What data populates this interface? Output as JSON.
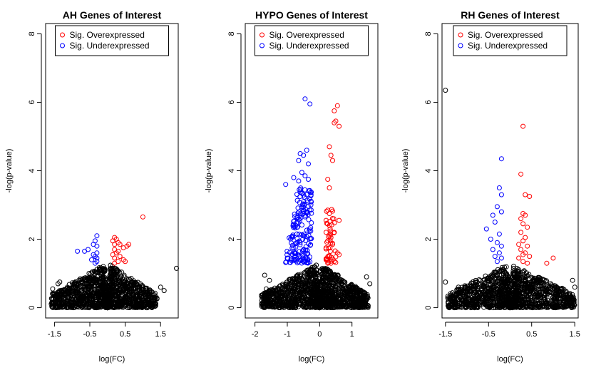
{
  "chart_data": [
    {
      "type": "scatter",
      "title": "AH Genes of Interest",
      "xlabel": "log(FC)",
      "ylabel": "-log(p-value)",
      "xticks": [
        -1.5,
        -0.5,
        0.5,
        1.5
      ],
      "yticks": [
        0,
        2,
        4,
        6,
        8
      ],
      "xlim": [
        -1.75,
        2.0
      ],
      "ylim": [
        -0.3,
        8.3
      ],
      "legend": {
        "position": "top",
        "entries": [
          {
            "label": "Sig. Overexpressed",
            "color": "#ff0000"
          },
          {
            "label": "Sig. Underexpressed",
            "color": "#0000ff"
          }
        ]
      },
      "colors": {
        "ns": "#000000",
        "over": "#ff0000",
        "under": "#0000ff"
      },
      "cloud": {
        "left_edge": -1.6,
        "right_edge": 1.4,
        "peak": 1.3,
        "n": 1400
      },
      "series": [
        {
          "name": "Sig. Overexpressed",
          "color": "#ff0000",
          "points": [
            [
              0.2,
              2.05
            ],
            [
              0.25,
              2.0
            ],
            [
              0.15,
              1.95
            ],
            [
              0.3,
              1.9
            ],
            [
              0.2,
              1.85
            ],
            [
              0.35,
              1.85
            ],
            [
              0.6,
              1.85
            ],
            [
              0.55,
              1.8
            ],
            [
              0.45,
              1.75
            ],
            [
              0.2,
              1.7
            ],
            [
              0.3,
              1.65
            ],
            [
              0.25,
              1.6
            ],
            [
              0.15,
              1.55
            ],
            [
              0.35,
              1.5
            ],
            [
              0.2,
              1.45
            ],
            [
              0.45,
              1.4
            ],
            [
              0.3,
              1.35
            ],
            [
              0.5,
              1.35
            ],
            [
              0.2,
              1.3
            ],
            [
              1.0,
              2.65
            ]
          ]
        },
        {
          "name": "Sig. Underexpressed",
          "color": "#0000ff",
          "points": [
            [
              -0.3,
              2.1
            ],
            [
              -0.35,
              1.95
            ],
            [
              -0.4,
              1.85
            ],
            [
              -0.3,
              1.8
            ],
            [
              -0.55,
              1.7
            ],
            [
              -0.65,
              1.65
            ],
            [
              -0.85,
              1.65
            ],
            [
              -0.3,
              1.6
            ],
            [
              -0.4,
              1.55
            ],
            [
              -0.35,
              1.5
            ],
            [
              -0.3,
              1.45
            ],
            [
              -0.45,
              1.4
            ],
            [
              -0.3,
              1.35
            ],
            [
              -0.35,
              1.3
            ]
          ]
        },
        {
          "name": "",
          "color": "#000000",
          "points": [
            [
              1.95,
              1.15
            ],
            [
              -1.55,
              0.55
            ],
            [
              1.6,
              0.5
            ],
            [
              1.5,
              0.6
            ],
            [
              -1.35,
              0.75
            ],
            [
              -1.4,
              0.7
            ]
          ]
        }
      ]
    },
    {
      "type": "scatter",
      "title": "HYPO Genes of Interest",
      "xlabel": "log(FC)",
      "ylabel": "-log(p-value)",
      "xticks": [
        -2,
        -1,
        0,
        1
      ],
      "yticks": [
        0,
        2,
        4,
        6,
        8
      ],
      "xlim": [
        -2.3,
        1.8
      ],
      "ylim": [
        -0.3,
        8.3
      ],
      "legend": {
        "position": "top",
        "entries": [
          {
            "label": "Sig. Overexpressed",
            "color": "#ff0000"
          },
          {
            "label": "Sig. Underexpressed",
            "color": "#0000ff"
          }
        ]
      },
      "colors": {
        "ns": "#000000",
        "over": "#ff0000",
        "under": "#0000ff"
      },
      "cloud": {
        "left_edge": -1.8,
        "right_edge": 1.5,
        "peak": 1.3,
        "n": 1500
      },
      "series": [
        {
          "name": "Sig. Overexpressed",
          "color": "#ff0000",
          "points": [
            [
              0.55,
              5.9
            ],
            [
              0.45,
              5.75
            ],
            [
              0.5,
              5.45
            ],
            [
              0.45,
              5.4
            ],
            [
              0.6,
              5.3
            ],
            [
              0.3,
              4.7
            ],
            [
              0.35,
              4.45
            ],
            [
              0.4,
              4.3
            ],
            [
              0.25,
              3.75
            ],
            [
              0.3,
              3.5
            ],
            [
              0.25,
              2.85
            ],
            [
              0.3,
              2.75
            ],
            [
              0.2,
              2.55
            ],
            [
              0.6,
              2.55
            ],
            [
              0.3,
              2.4
            ],
            [
              0.2,
              2.2
            ],
            [
              0.45,
              2.2
            ],
            [
              0.35,
              2.05
            ],
            [
              0.25,
              1.95
            ],
            [
              0.4,
              1.85
            ],
            [
              0.2,
              1.75
            ],
            [
              0.55,
              1.6
            ],
            [
              0.6,
              1.55
            ],
            [
              0.3,
              1.5
            ],
            [
              0.2,
              1.4
            ],
            [
              0.45,
              1.35
            ],
            [
              0.25,
              1.3
            ],
            [
              0.35,
              1.3
            ]
          ]
        },
        {
          "name": "Sig. Underexpressed",
          "color": "#0000ff",
          "points": [
            [
              -0.45,
              6.1
            ],
            [
              -0.3,
              5.95
            ],
            [
              -0.6,
              4.5
            ],
            [
              -0.5,
              4.45
            ],
            [
              -0.4,
              4.6
            ],
            [
              -0.65,
              4.3
            ],
            [
              -0.35,
              4.2
            ],
            [
              -0.55,
              3.95
            ],
            [
              -0.45,
              3.85
            ],
            [
              -0.8,
              3.8
            ],
            [
              -0.65,
              3.7
            ],
            [
              -0.35,
              3.75
            ],
            [
              -1.05,
              3.6
            ],
            [
              -0.55,
              3.35
            ],
            [
              -0.4,
              3.3
            ]
          ]
        },
        {
          "name": "",
          "color": "#000000",
          "points": [
            [
              -1.7,
              0.95
            ],
            [
              1.45,
              0.9
            ],
            [
              -1.55,
              0.8
            ],
            [
              1.55,
              0.7
            ],
            [
              -1.65,
              0.55
            ]
          ]
        }
      ],
      "under_band": {
        "x": [
          -1.1,
          -0.25
        ],
        "y": [
          1.3,
          3.5
        ],
        "n": 170
      },
      "over_band": {
        "x": [
          0.18,
          0.5
        ],
        "y": [
          1.3,
          2.9
        ],
        "n": 40
      }
    },
    {
      "type": "scatter",
      "title": "RH Genes of Interest",
      "xlabel": "log(FC)",
      "ylabel": "-log(p-value)",
      "xticks": [
        -1.5,
        -0.5,
        0.5,
        1.5
      ],
      "yticks": [
        0,
        2,
        4,
        6,
        8
      ],
      "xlim": [
        -1.58,
        1.58
      ],
      "ylim": [
        -0.3,
        8.3
      ],
      "legend": {
        "position": "top",
        "entries": [
          {
            "label": "Sig. Overexpressed",
            "color": "#ff0000"
          },
          {
            "label": "Sig. Underexpressed",
            "color": "#0000ff"
          }
        ]
      },
      "colors": {
        "ns": "#000000",
        "over": "#ff0000",
        "under": "#0000ff"
      },
      "cloud": {
        "left_edge": -1.45,
        "right_edge": 1.5,
        "peak": 1.3,
        "n": 1400
      },
      "series": [
        {
          "name": "Sig. Overexpressed",
          "color": "#ff0000",
          "points": [
            [
              0.3,
              5.3
            ],
            [
              0.25,
              3.9
            ],
            [
              0.35,
              3.3
            ],
            [
              0.45,
              3.25
            ],
            [
              0.3,
              2.75
            ],
            [
              0.35,
              2.7
            ],
            [
              0.25,
              2.6
            ],
            [
              0.3,
              2.45
            ],
            [
              0.4,
              2.35
            ],
            [
              0.25,
              2.2
            ],
            [
              0.35,
              2.05
            ],
            [
              0.3,
              1.95
            ],
            [
              0.2,
              1.85
            ],
            [
              0.4,
              1.8
            ],
            [
              0.25,
              1.7
            ],
            [
              0.35,
              1.6
            ],
            [
              0.3,
              1.55
            ],
            [
              0.45,
              1.5
            ],
            [
              0.2,
              1.45
            ],
            [
              1.0,
              1.45
            ],
            [
              0.85,
              1.3
            ],
            [
              0.3,
              1.35
            ],
            [
              0.4,
              1.3
            ]
          ]
        },
        {
          "name": "Sig. Underexpressed",
          "color": "#0000ff",
          "points": [
            [
              -0.2,
              4.35
            ],
            [
              -0.25,
              3.5
            ],
            [
              -0.2,
              3.3
            ],
            [
              -0.3,
              2.95
            ],
            [
              -0.4,
              2.7
            ],
            [
              -0.2,
              2.8
            ],
            [
              -0.55,
              2.3
            ],
            [
              -0.35,
              2.5
            ],
            [
              -0.25,
              2.15
            ],
            [
              -0.45,
              2.0
            ],
            [
              -0.3,
              1.9
            ],
            [
              -0.2,
              1.8
            ],
            [
              -0.4,
              1.7
            ],
            [
              -0.25,
              1.6
            ],
            [
              -0.35,
              1.5
            ],
            [
              -0.2,
              1.45
            ],
            [
              -0.3,
              1.35
            ]
          ]
        },
        {
          "name": "",
          "color": "#000000",
          "points": [
            [
              -1.5,
              6.35
            ],
            [
              -1.5,
              0.75
            ],
            [
              1.45,
              0.8
            ],
            [
              1.5,
              0.6
            ],
            [
              -1.2,
              0.6
            ]
          ]
        }
      ]
    }
  ]
}
